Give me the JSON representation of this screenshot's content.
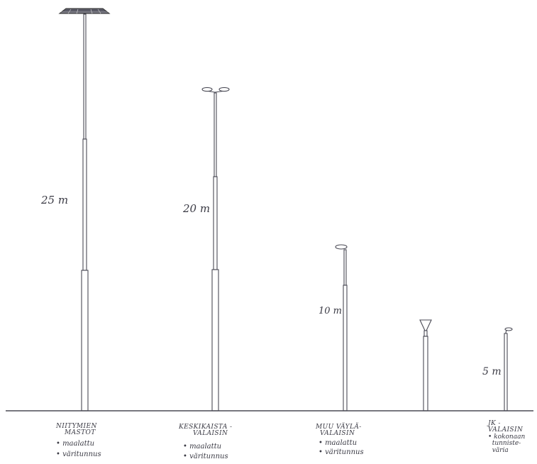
{
  "heights": [
    {
      "id": "tall",
      "text": "25 m",
      "value": 25
    },
    {
      "id": "mid",
      "text": "20 m",
      "value": 20
    },
    {
      "id": "small",
      "text": "10 m",
      "value": 10
    },
    {
      "id": "ped",
      "text": "5 m",
      "value": 5
    }
  ],
  "captions": [
    {
      "title_lines": [
        "NIITYMIEN",
        "MASTOT"
      ],
      "bullets": [
        "• maalattu",
        "• väritunnus"
      ]
    },
    {
      "title_lines": [
        "KESKIKAISTA -",
        "VALAISIN"
      ],
      "bullets": [
        "• maalattu",
        "• väritunnus"
      ]
    },
    {
      "title_lines": [
        "MUU VÄYLÄ-",
        "VALAISIN"
      ],
      "bullets": [
        "• maalattu",
        "• väritunnus"
      ]
    },
    {
      "title_lines": [
        "JK -",
        "VALAISIN"
      ],
      "bullets": [
        "• kokonaan",
        "  tunniste-",
        "  väria"
      ]
    }
  ]
}
